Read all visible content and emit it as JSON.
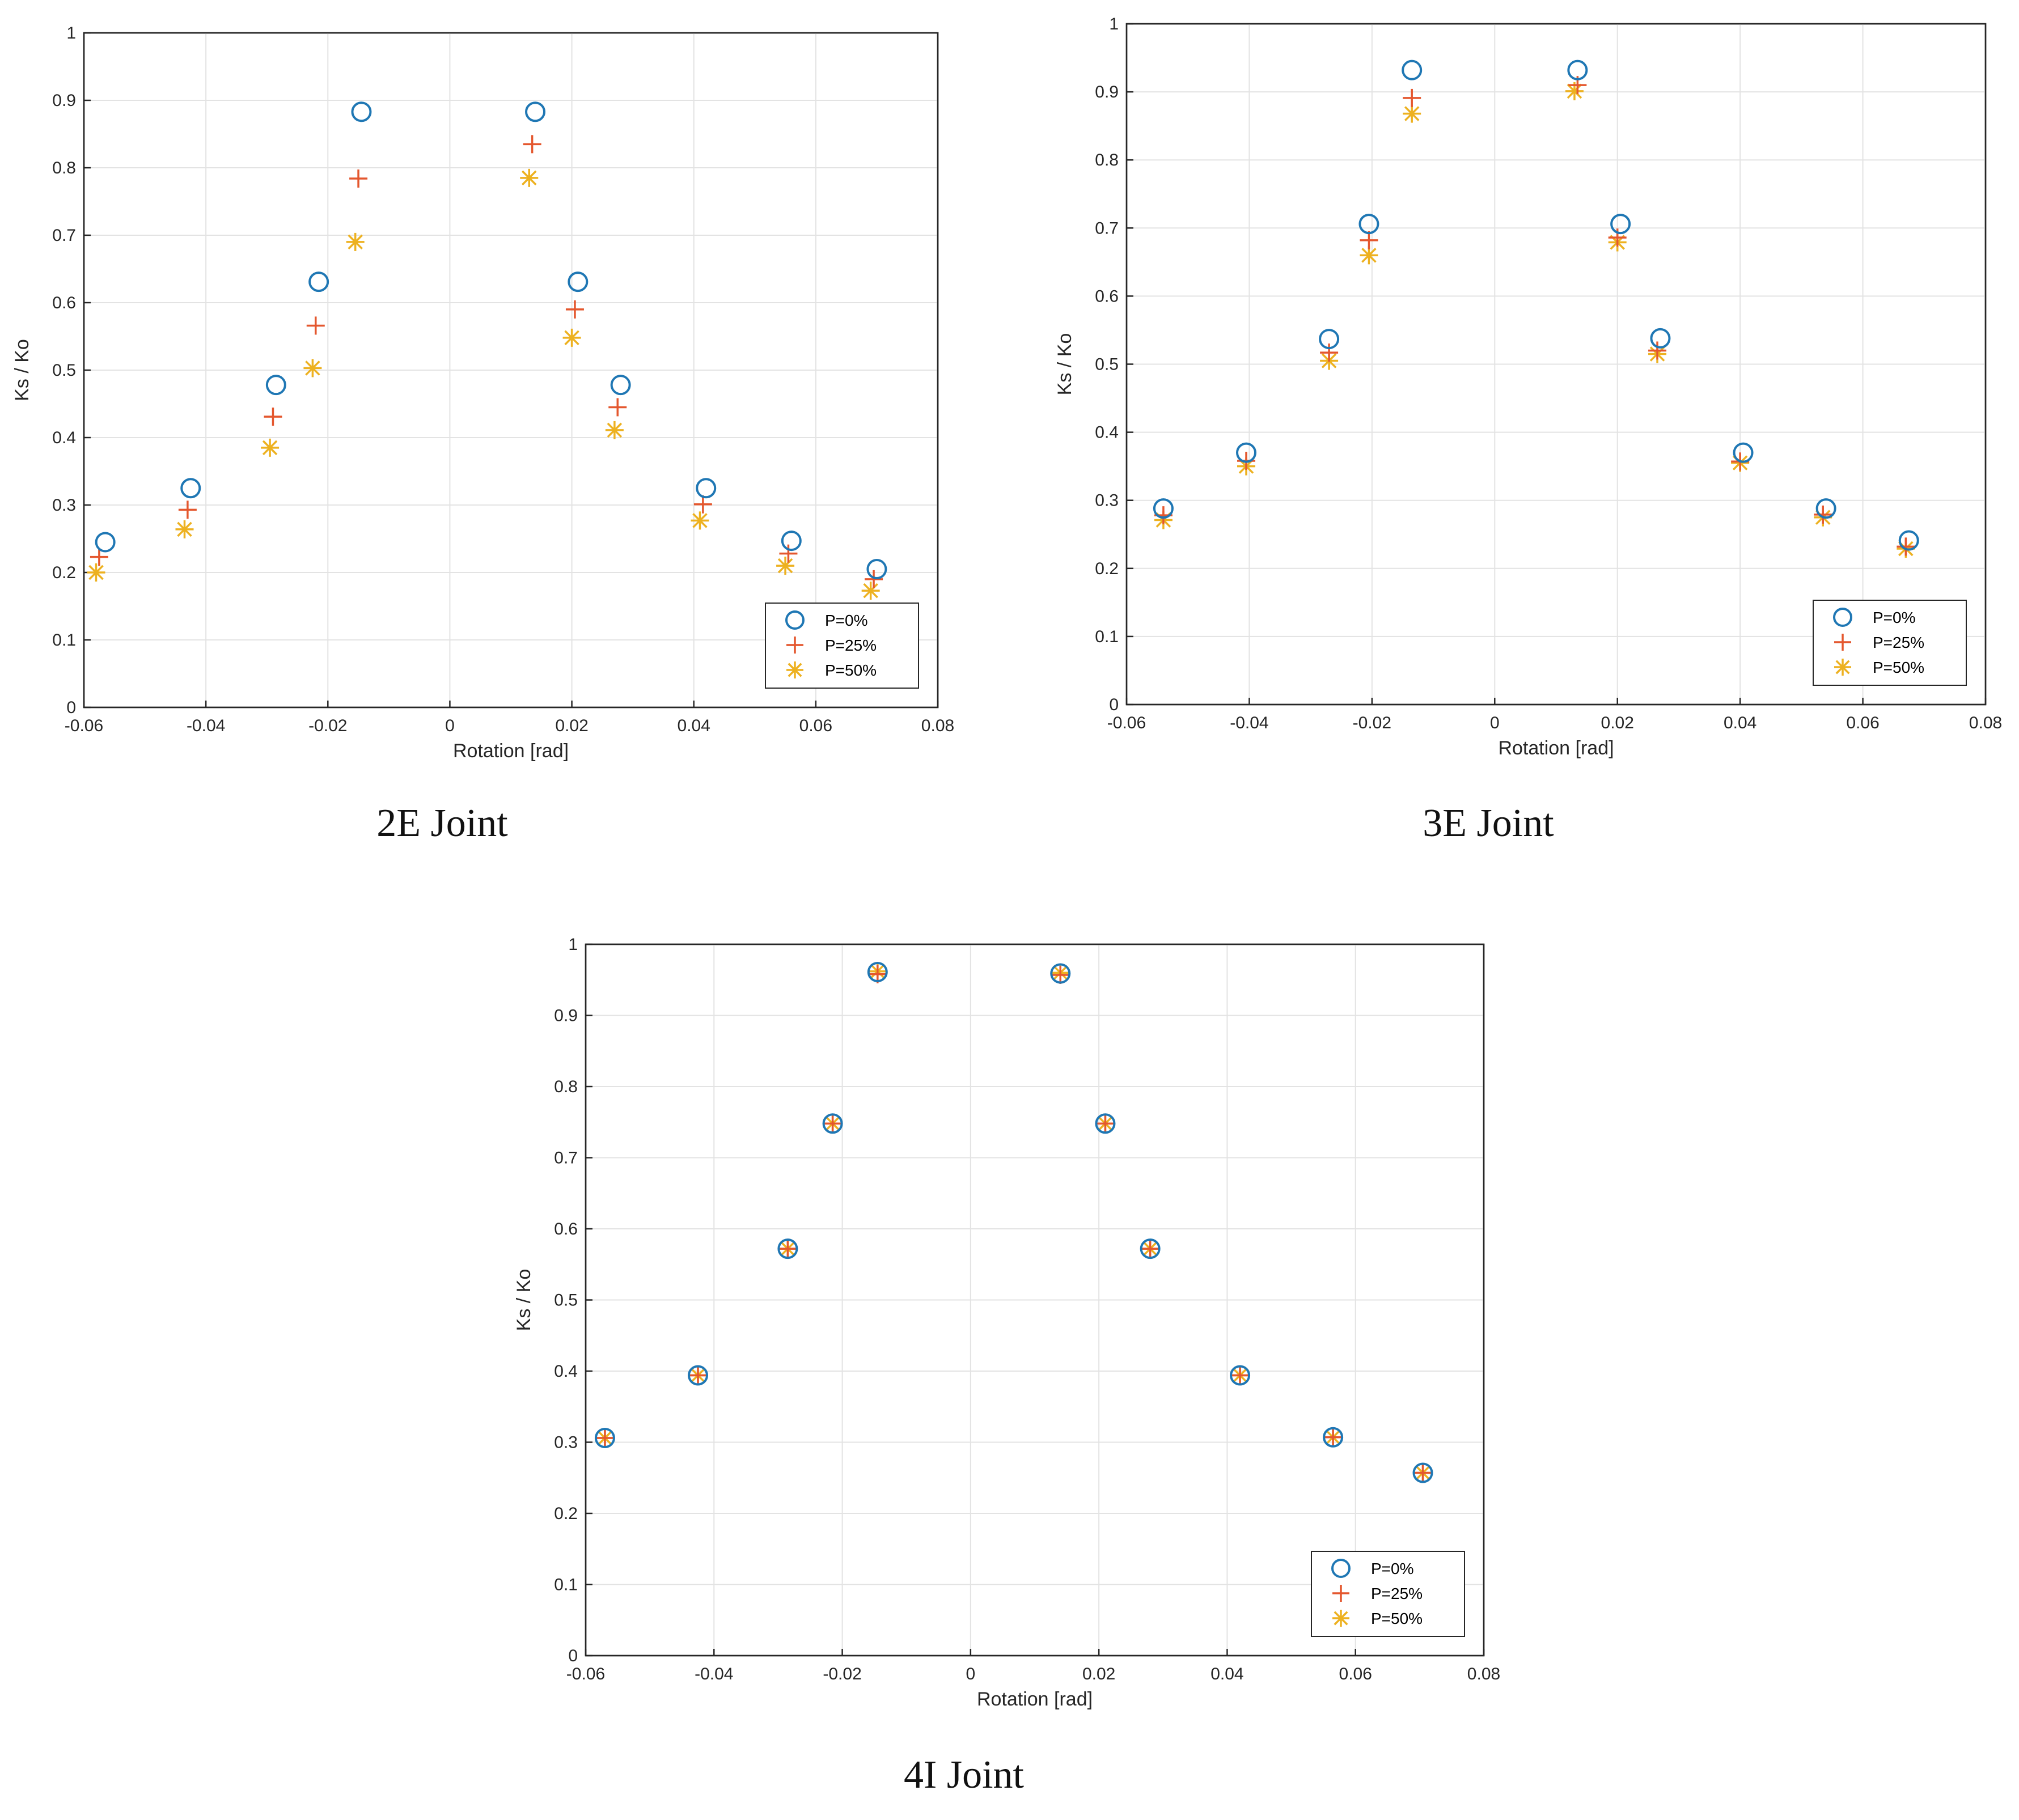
{
  "colors": {
    "p0": "#1f77b4",
    "p25": "#e4572e",
    "p50": "#edb120"
  },
  "legend_labels": [
    "P=0%",
    "P=25%",
    "P=50%"
  ],
  "chart_data": [
    {
      "type": "scatter",
      "caption": "2E Joint",
      "xlabel": "Rotation [rad]",
      "ylabel": "Ks / Ko",
      "xlim": [
        -0.06,
        0.08
      ],
      "ylim": [
        0,
        1
      ],
      "xticks": [
        "-0.06",
        "-0.04",
        "-0.02",
        "0",
        "0.02",
        "0.04",
        "0.06",
        "0.08"
      ],
      "yticks": [
        "0",
        "0.1",
        "0.2",
        "0.3",
        "0.4",
        "0.5",
        "0.6",
        "0.7",
        "0.8",
        "0.9",
        "1"
      ],
      "grid": true,
      "legend_position": "bottom-right",
      "series": [
        {
          "name": "P=0%",
          "marker": "circle",
          "x": [
            -0.0565,
            -0.0425,
            -0.0285,
            -0.0215,
            -0.0145,
            0.014,
            0.021,
            0.028,
            0.042,
            0.056,
            0.07
          ],
          "y": [
            0.245,
            0.325,
            0.478,
            0.631,
            0.883,
            0.883,
            0.631,
            0.478,
            0.325,
            0.247,
            0.205
          ]
        },
        {
          "name": "P=25%",
          "marker": "plus",
          "x": [
            -0.0575,
            -0.043,
            -0.029,
            -0.022,
            -0.015,
            0.0135,
            0.0205,
            0.0275,
            0.0415,
            0.0555,
            0.0695
          ],
          "y": [
            0.223,
            0.293,
            0.431,
            0.566,
            0.784,
            0.835,
            0.59,
            0.445,
            0.301,
            0.228,
            0.19
          ]
        },
        {
          "name": "P=50%",
          "marker": "asterisk",
          "x": [
            -0.058,
            -0.0435,
            -0.0295,
            -0.0225,
            -0.0155,
            0.013,
            0.02,
            0.027,
            0.041,
            0.055,
            0.069
          ],
          "y": [
            0.2,
            0.264,
            0.385,
            0.503,
            0.69,
            0.785,
            0.548,
            0.411,
            0.277,
            0.21,
            0.173
          ]
        }
      ]
    },
    {
      "type": "scatter",
      "caption": "3E Joint",
      "xlabel": "Rotation [rad]",
      "ylabel": "Ks / Ko",
      "xlim": [
        -0.06,
        0.08
      ],
      "ylim": [
        0,
        1
      ],
      "xticks": [
        "-0.06",
        "-0.04",
        "-0.02",
        "0",
        "0.02",
        "0.04",
        "0.06",
        "0.08"
      ],
      "yticks": [
        "0",
        "0.1",
        "0.2",
        "0.3",
        "0.4",
        "0.5",
        "0.6",
        "0.7",
        "0.8",
        "0.9",
        "1"
      ],
      "grid": true,
      "legend_position": "bottom-right",
      "series": [
        {
          "name": "P=0%",
          "marker": "circle",
          "x": [
            -0.054,
            -0.0405,
            -0.027,
            -0.0205,
            -0.0135,
            0.0135,
            0.0205,
            0.027,
            0.0405,
            0.054,
            0.0675
          ],
          "y": [
            0.288,
            0.37,
            0.537,
            0.706,
            0.932,
            0.932,
            0.706,
            0.538,
            0.37,
            0.288,
            0.241
          ]
        },
        {
          "name": "P=25%",
          "marker": "plus",
          "x": [
            -0.054,
            -0.0405,
            -0.027,
            -0.0205,
            -0.0135,
            0.0135,
            0.02,
            0.0265,
            0.04,
            0.0535,
            0.067
          ],
          "y": [
            0.278,
            0.358,
            0.517,
            0.682,
            0.891,
            0.91,
            0.686,
            0.52,
            0.357,
            0.279,
            0.232
          ]
        },
        {
          "name": "P=50%",
          "marker": "asterisk",
          "x": [
            -0.054,
            -0.0405,
            -0.027,
            -0.0205,
            -0.0135,
            0.013,
            0.02,
            0.0265,
            0.04,
            0.0535,
            0.067
          ],
          "y": [
            0.271,
            0.35,
            0.505,
            0.66,
            0.868,
            0.901,
            0.679,
            0.515,
            0.355,
            0.275,
            0.229
          ]
        }
      ]
    },
    {
      "type": "scatter",
      "caption": "4I Joint",
      "xlabel": "Rotation [rad]",
      "ylabel": "Ks / Ko",
      "xlim": [
        -0.06,
        0.08
      ],
      "ylim": [
        0,
        1
      ],
      "xticks": [
        "-0.06",
        "-0.04",
        "-0.02",
        "0",
        "0.02",
        "0.04",
        "0.06",
        "0.08"
      ],
      "yticks": [
        "0",
        "0.1",
        "0.2",
        "0.3",
        "0.4",
        "0.5",
        "0.6",
        "0.7",
        "0.8",
        "0.9",
        "1"
      ],
      "grid": true,
      "legend_position": "bottom-right",
      "series": [
        {
          "name": "P=0%",
          "marker": "circle",
          "x": [
            -0.057,
            -0.0425,
            -0.0285,
            -0.0215,
            -0.0145,
            0.014,
            0.021,
            0.028,
            0.042,
            0.0565,
            0.0705
          ],
          "y": [
            0.306,
            0.394,
            0.572,
            0.748,
            0.961,
            0.959,
            0.748,
            0.572,
            0.394,
            0.307,
            0.257
          ]
        },
        {
          "name": "P=25%",
          "marker": "plus",
          "x": [
            -0.057,
            -0.0425,
            -0.0285,
            -0.0215,
            -0.0145,
            0.014,
            0.021,
            0.028,
            0.042,
            0.0565,
            0.0705
          ],
          "y": [
            0.306,
            0.394,
            0.572,
            0.748,
            0.958,
            0.957,
            0.748,
            0.572,
            0.394,
            0.307,
            0.257
          ]
        },
        {
          "name": "P=50%",
          "marker": "asterisk",
          "x": [
            -0.057,
            -0.0425,
            -0.0285,
            -0.0215,
            -0.0145,
            0.014,
            0.021,
            0.028,
            0.042,
            0.0565,
            0.0705
          ],
          "y": [
            0.306,
            0.394,
            0.572,
            0.748,
            0.962,
            0.96,
            0.748,
            0.572,
            0.394,
            0.307,
            0.257
          ]
        }
      ]
    }
  ]
}
